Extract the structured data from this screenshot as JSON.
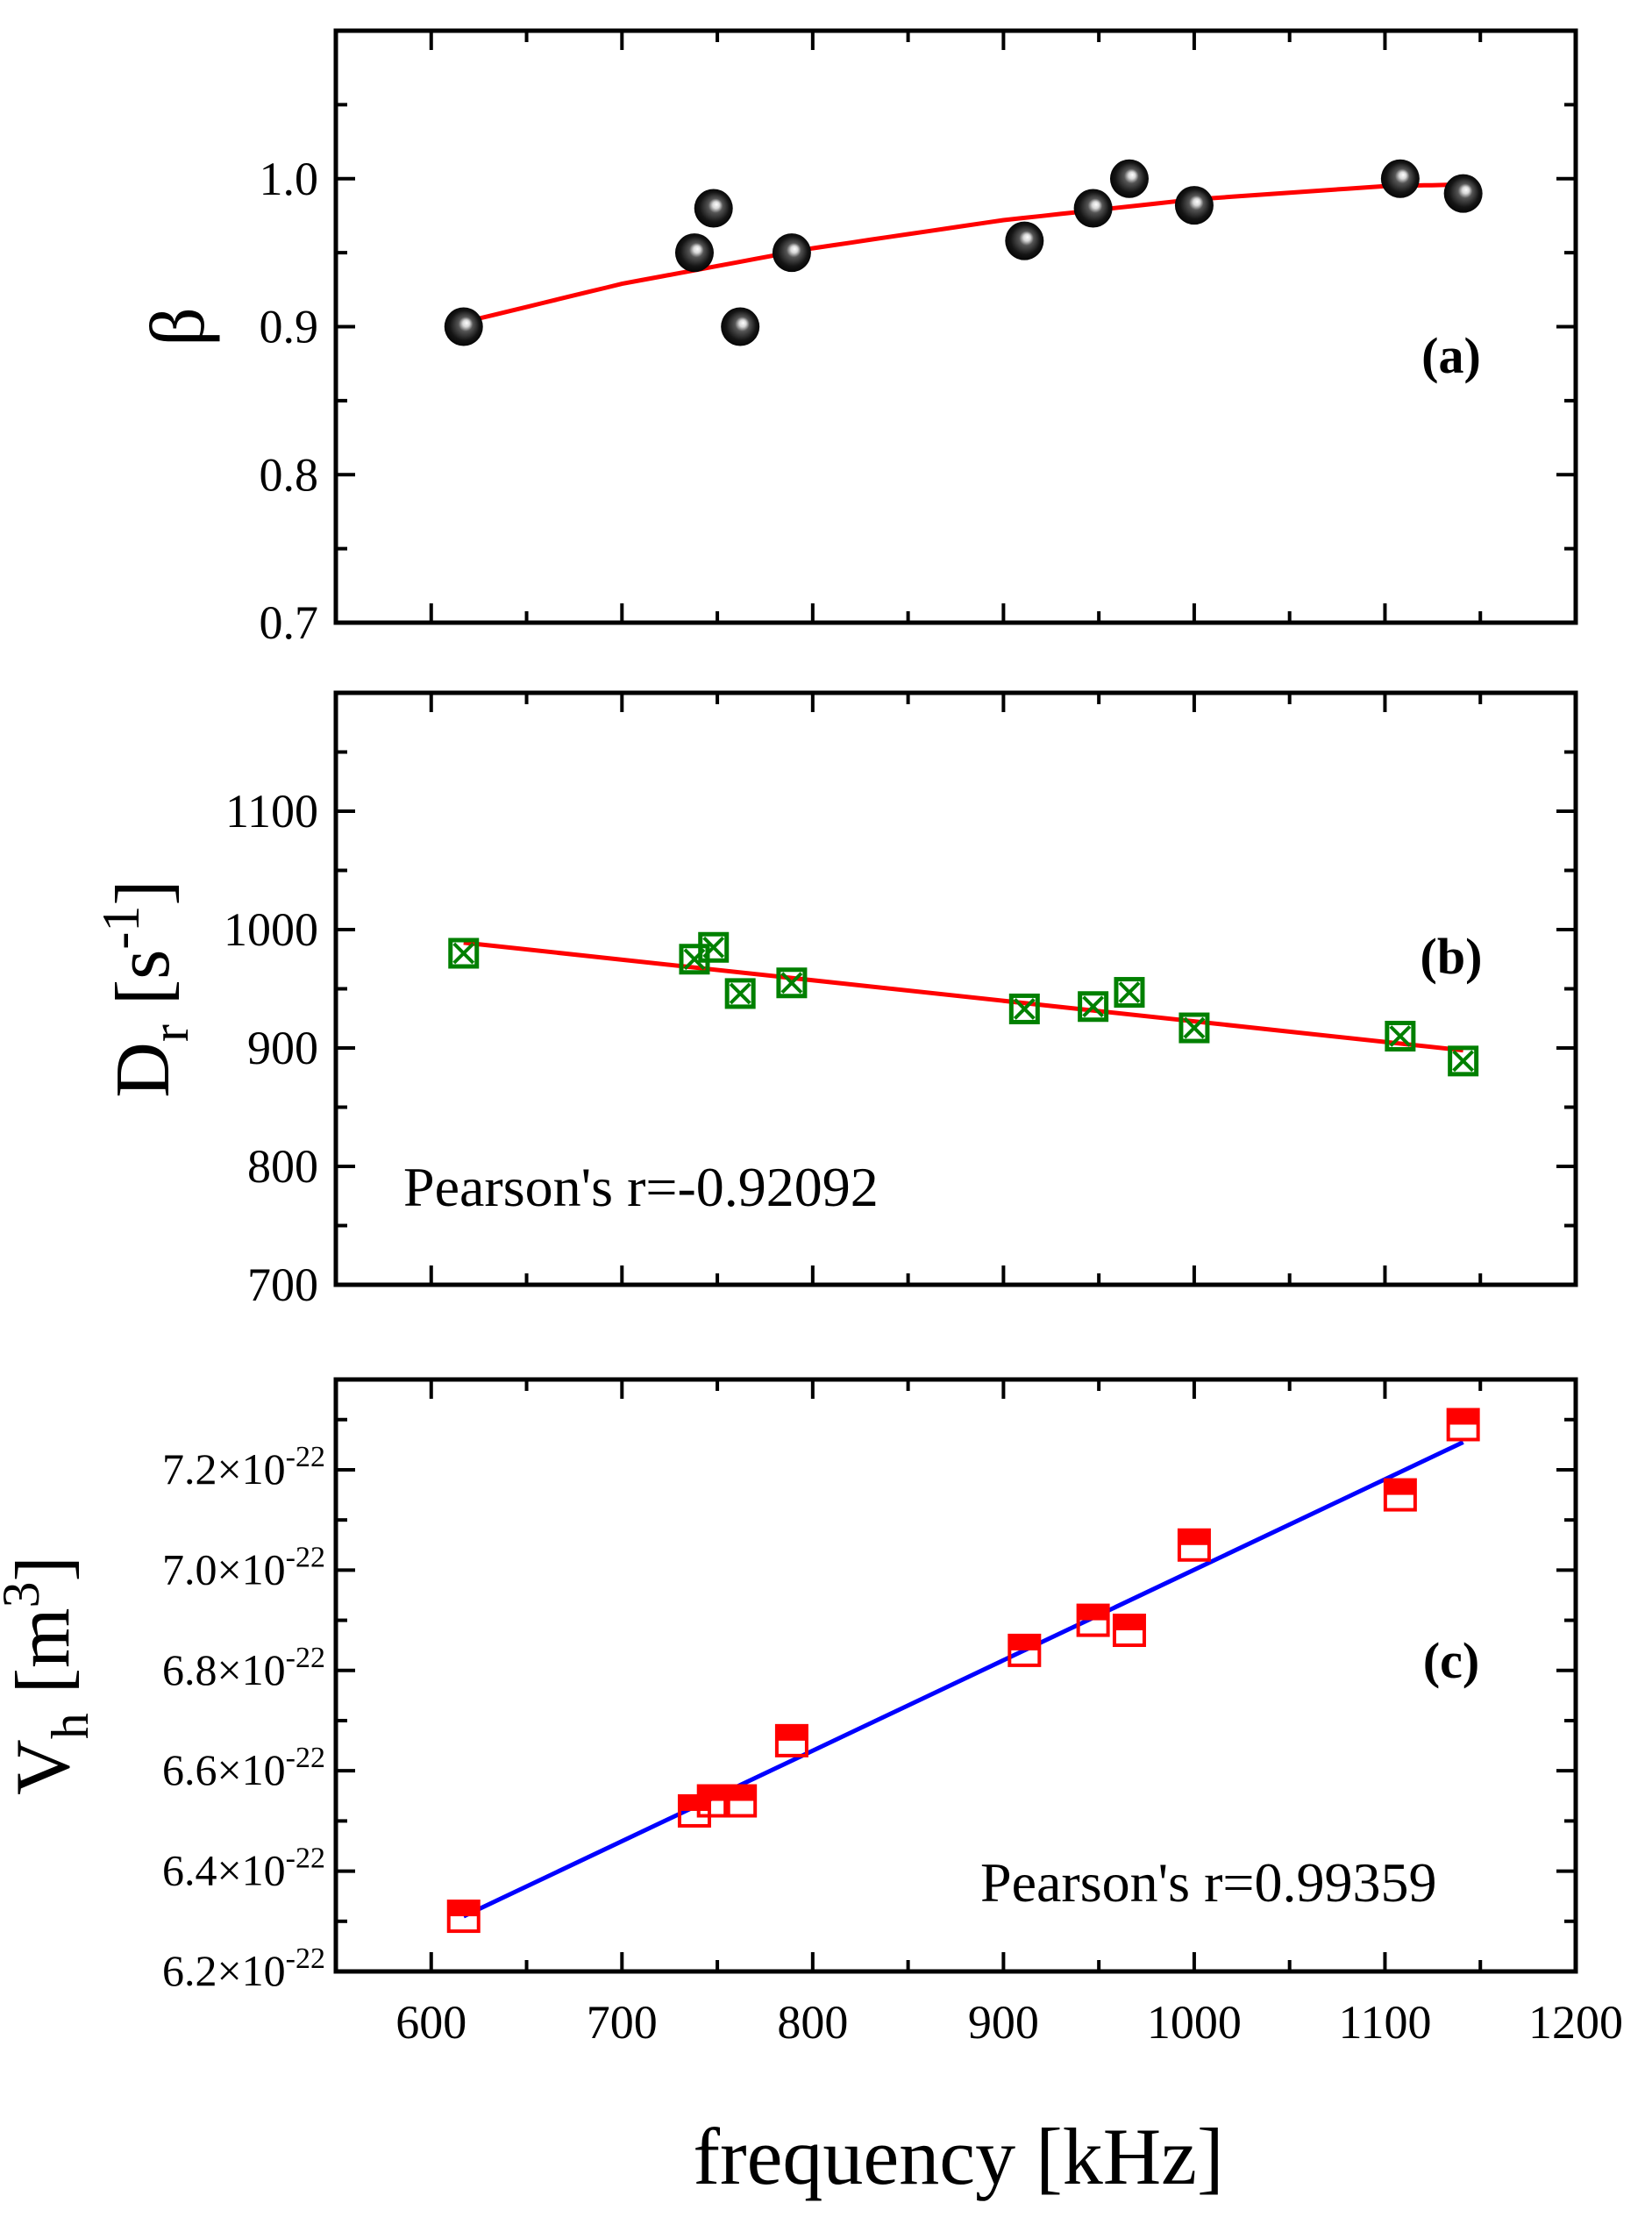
{
  "figure": {
    "xlabel": "frequency [kHz]",
    "x_ticks": [
      "600",
      "700",
      "800",
      "900",
      "1000",
      "1100",
      "1200"
    ]
  },
  "chart_data": [
    {
      "type": "scatter",
      "panel": "a",
      "label": "(a)",
      "ylabel": "β",
      "xlim": [
        550,
        1200
      ],
      "ylim": [
        0.7,
        1.1
      ],
      "y_ticks": [
        "0.7",
        "0.8",
        "0.9",
        "1.0"
      ],
      "x": [
        617,
        738,
        748,
        762,
        789,
        911,
        947,
        966,
        1000,
        1108,
        1141
      ],
      "y": [
        0.9,
        0.95,
        0.98,
        0.9,
        0.95,
        0.958,
        0.98,
        1.0,
        0.982,
        1.0,
        0.99
      ],
      "marker": "black sphere",
      "fit": {
        "type": "curve",
        "color": "#ff0000",
        "x": [
          617,
          700,
          800,
          900,
          1000,
          1100,
          1141
        ],
        "y": [
          0.903,
          0.929,
          0.953,
          0.972,
          0.986,
          0.995,
          0.996
        ]
      }
    },
    {
      "type": "scatter",
      "panel": "b",
      "label": "(b)",
      "ylabel": "Dr [s-1]",
      "ylabel_parts": {
        "main": "D",
        "sub": "r",
        "unit_open": "[s",
        "sup": "-1",
        "unit_close": "]"
      },
      "annotation": "Pearson's r=-0.92092",
      "xlim": [
        550,
        1200
      ],
      "ylim": [
        700,
        1200
      ],
      "y_ticks": [
        "700",
        "800",
        "900",
        "1000",
        "1100"
      ],
      "x": [
        617,
        738,
        748,
        762,
        789,
        911,
        947,
        966,
        1000,
        1108,
        1141
      ],
      "y": [
        980,
        975,
        985,
        946,
        955,
        933,
        935,
        947,
        917,
        910,
        889
      ],
      "marker": "green crossed square",
      "marker_color": "#008000",
      "fit": {
        "type": "line",
        "color": "#ff0000",
        "x": [
          617,
          1141
        ],
        "y": [
          989,
          898
        ]
      }
    },
    {
      "type": "scatter",
      "panel": "c",
      "label": "(c)",
      "ylabel": "Vh [m3]",
      "ylabel_parts": {
        "main": "V",
        "sub": "h",
        "unit_open": "[m",
        "sup": "3",
        "unit_close": "]"
      },
      "annotation": "Pearson's r=0.99359",
      "xlim": [
        550,
        1200
      ],
      "ylim": [
        6.2e-22,
        7.38e-22
      ],
      "y_ticks": [
        {
          "mantissa": "6.2",
          "exp": "-22",
          "value": 6.2e-22
        },
        {
          "mantissa": "6.4",
          "exp": "-22",
          "value": 6.4e-22
        },
        {
          "mantissa": "6.6",
          "exp": "-22",
          "value": 6.6e-22
        },
        {
          "mantissa": "6.8",
          "exp": "-22",
          "value": 6.8e-22
        },
        {
          "mantissa": "7.0",
          "exp": "-22",
          "value": 7e-22
        },
        {
          "mantissa": "7.2",
          "exp": "-22",
          "value": 7.2e-22
        }
      ],
      "x": [
        617,
        738,
        748,
        762,
        789,
        911,
        947,
        966,
        1000,
        1108,
        1141
      ],
      "y": [
        6.31e-22,
        6.52e-22,
        6.54e-22,
        6.54e-22,
        6.66e-22,
        6.84e-22,
        6.9e-22,
        6.88e-22,
        7.05e-22,
        7.15e-22,
        7.29e-22
      ],
      "marker": "red half-filled square",
      "marker_color": "#ff0000",
      "fit": {
        "type": "line",
        "color": "#0000ff",
        "x": [
          617,
          1141
        ],
        "y": [
          6.31e-22,
          7.255e-22
        ]
      }
    }
  ]
}
